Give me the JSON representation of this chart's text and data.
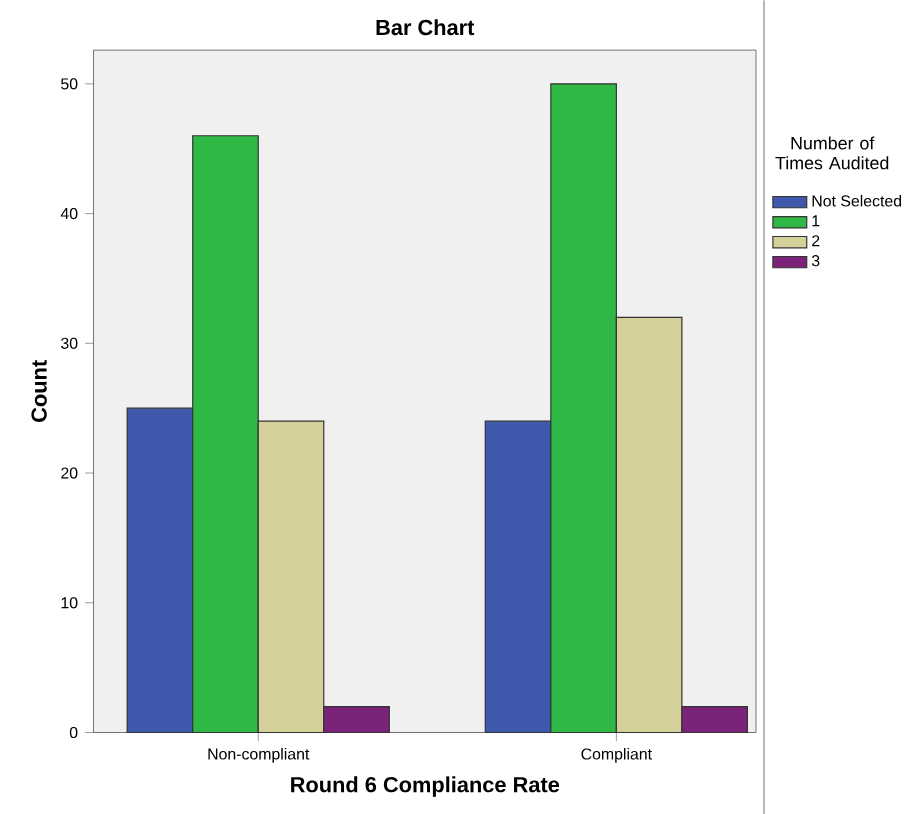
{
  "chart_data": {
    "type": "bar",
    "title": "Bar Chart",
    "xlabel": "Round 6 Compliance Rate",
    "ylabel": "Count",
    "legend_title": "Number of Times Audited",
    "categories": [
      "Non-compliant",
      "Compliant"
    ],
    "series": [
      {
        "name": "Not Selected",
        "color": "#3e58ac",
        "values": [
          25,
          24
        ]
      },
      {
        "name": "1",
        "color": "#2fb845",
        "values": [
          46,
          50
        ]
      },
      {
        "name": "2",
        "color": "#d4d099",
        "values": [
          24,
          32
        ]
      },
      {
        "name": "3",
        "color": "#7b2379",
        "values": [
          2,
          2
        ]
      }
    ],
    "ylim": [
      0,
      52.6
    ],
    "yticks": [
      0,
      10,
      20,
      30,
      40,
      50
    ],
    "legend": "right"
  }
}
